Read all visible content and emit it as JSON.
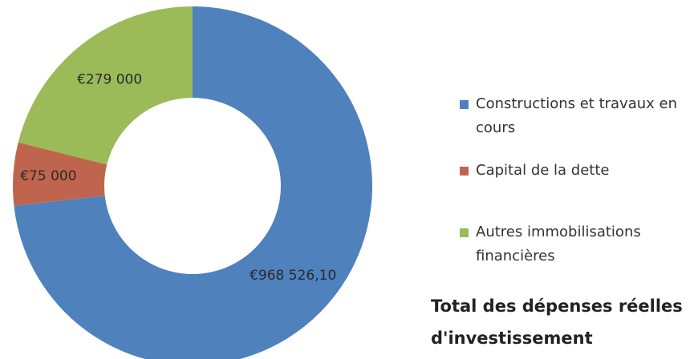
{
  "chart_data": {
    "type": "donut",
    "title": "Total des dépenses réelles d'investissement",
    "categories": [
      "Constructions et travaux en cours",
      "Capital de la dette",
      "Autres immobilisations financières"
    ],
    "values": [
      968526.1,
      75000,
      279000
    ],
    "value_labels": [
      "€968 526,10",
      "€75 000",
      "€279 000"
    ],
    "colors": [
      "#4f81bd",
      "#c0654d",
      "#9bbb59"
    ],
    "legend": "right"
  }
}
